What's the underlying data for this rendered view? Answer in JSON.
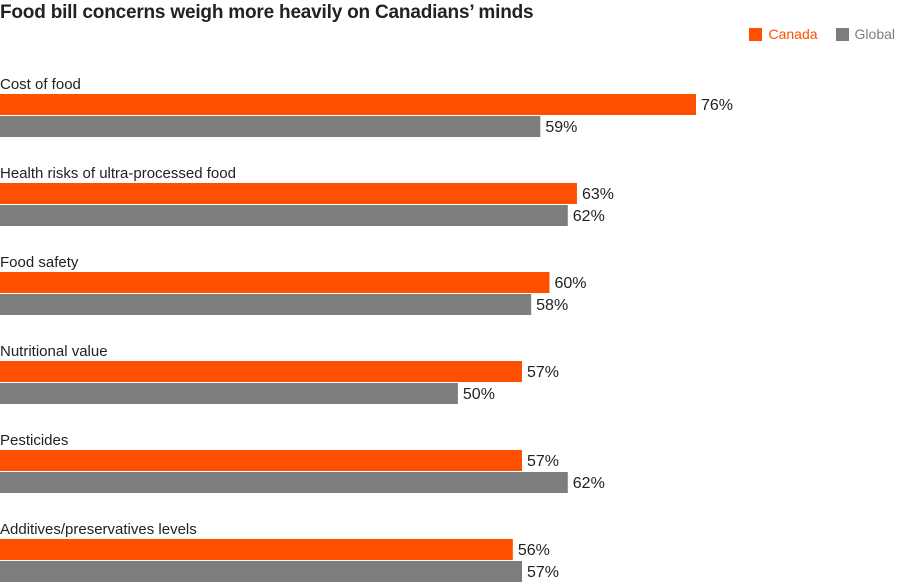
{
  "colors": {
    "canada": "#fe5000",
    "global": "#7d7d7d"
  },
  "chart_data": {
    "type": "bar",
    "orientation": "horizontal",
    "title": "Food bill concerns weigh more heavily on Canadians’ minds",
    "legend_position": "top-right",
    "value_suffix": "%",
    "xlim": [
      0,
      100
    ],
    "categories": [
      "Cost of food",
      "Health risks of ultra-processed food",
      "Food safety",
      "Nutritional value",
      "Pesticides",
      "Additives/preservatives levels"
    ],
    "series": [
      {
        "name": "Canada",
        "values": [
          76,
          63,
          60,
          57,
          57,
          56
        ]
      },
      {
        "name": "Global",
        "values": [
          59,
          62,
          58,
          50,
          62,
          57
        ]
      }
    ]
  }
}
